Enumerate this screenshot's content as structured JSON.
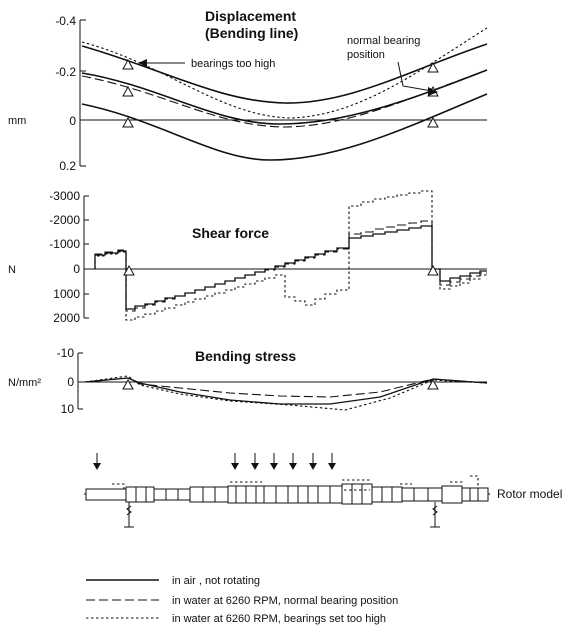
{
  "figure": {
    "displacement": {
      "title_line1": "Displacement",
      "title_line2": "(Bending line)",
      "unit": "mm",
      "ticks": [
        "-0.4",
        "-0.2",
        "0",
        "0.2"
      ],
      "annotation_high": "bearings too high",
      "annotation_normal_line1": "normal bearing",
      "annotation_normal_line2": "position"
    },
    "shear": {
      "title": "Shear force",
      "unit": "N",
      "ticks": [
        "-3000",
        "-2000",
        "-1000",
        "0",
        "1000",
        "2000"
      ]
    },
    "stress": {
      "title": "Bending stress",
      "unit": "N/mm²",
      "ticks": [
        "-10",
        "0",
        "10"
      ]
    },
    "rotor_label": "Rotor model",
    "legend": [
      {
        "style": "solid",
        "label": "in air , not rotating"
      },
      {
        "style": "dashed",
        "label": "in water at 6260 RPM, normal bearing position"
      },
      {
        "style": "dotted",
        "label": "in water at 6260 RPM, bearings set too high"
      }
    ]
  },
  "chart_data": [
    {
      "type": "line",
      "title": "Displacement (Bending line)",
      "ylabel": "mm",
      "ylim": [
        0.2,
        -0.4
      ],
      "x": [
        0,
        0.1,
        0.2,
        0.3,
        0.4,
        0.5,
        0.6,
        0.7,
        0.8,
        0.9,
        1.0
      ],
      "series": [
        {
          "name": "in air , not rotating",
          "values": [
            -0.3,
            -0.21,
            -0.1,
            0.0,
            0.05,
            0.06,
            0.03,
            -0.04,
            -0.13,
            -0.22,
            -0.3
          ]
        },
        {
          "name": "in air , not rotating",
          "values": [
            -0.19,
            -0.11,
            -0.02,
            0.05,
            0.09,
            0.09,
            0.06,
            -0.01,
            -0.1,
            -0.19,
            -0.27
          ]
        },
        {
          "name": "in air , not rotating",
          "values": [
            -0.07,
            0.03,
            0.1,
            0.15,
            0.17,
            0.16,
            0.12,
            0.05,
            -0.03,
            -0.12,
            -0.2
          ]
        },
        {
          "name": "in water at 6260 RPM, normal bearing position",
          "values": [
            -0.2,
            -0.12,
            -0.04,
            0.03,
            0.07,
            0.08,
            0.04,
            -0.04,
            -0.12,
            -0.2,
            -0.24
          ]
        },
        {
          "name": "in water at 6260 RPM, bearings set too high",
          "values": [
            -0.32,
            -0.2,
            -0.07,
            0.0,
            0.03,
            0.04,
            0.01,
            -0.07,
            -0.19,
            -0.31,
            -0.39
          ]
        }
      ]
    },
    {
      "type": "line",
      "title": "Shear force",
      "ylabel": "N",
      "ylim": [
        2000,
        -3000
      ],
      "x": [
        0,
        0.1,
        0.2,
        0.3,
        0.4,
        0.5,
        0.6,
        0.7,
        0.8,
        0.9,
        1.0
      ],
      "series": [
        {
          "name": "in air , not rotating",
          "values": [
            -600,
            -700,
            1550,
            1300,
            900,
            500,
            -50,
            -600,
            -1500,
            300,
            0
          ]
        },
        {
          "name": "in water at 6260 RPM, normal bearing position",
          "values": [
            -620,
            -720,
            1650,
            1350,
            1000,
            600,
            -100,
            -700,
            -1700,
            400,
            0
          ]
        },
        {
          "name": "in water at 6260 RPM, bearings set too high",
          "values": [
            -650,
            -750,
            2100,
            1750,
            1300,
            800,
            100,
            -2600,
            -3300,
            600,
            0
          ]
        }
      ]
    },
    {
      "type": "line",
      "title": "Bending stress",
      "ylabel": "N/mm²",
      "ylim": [
        10,
        -10
      ],
      "x": [
        0,
        0.1,
        0.2,
        0.3,
        0.4,
        0.5,
        0.6,
        0.7,
        0.8,
        0.9,
        1.0
      ],
      "series": [
        {
          "name": "in air , not rotating",
          "values": [
            0,
            -1,
            2,
            5,
            7,
            7,
            5,
            2,
            -1,
            0,
            0
          ]
        },
        {
          "name": "in water at 6260 RPM, normal bearing position",
          "values": [
            0,
            -1,
            2,
            3,
            4,
            5,
            5,
            3,
            -1,
            0,
            0
          ]
        },
        {
          "name": "in water at 6260 RPM, bearings set too high",
          "values": [
            0,
            -2,
            3,
            5,
            7,
            9,
            10,
            4,
            -1,
            0,
            0
          ]
        }
      ]
    }
  ]
}
